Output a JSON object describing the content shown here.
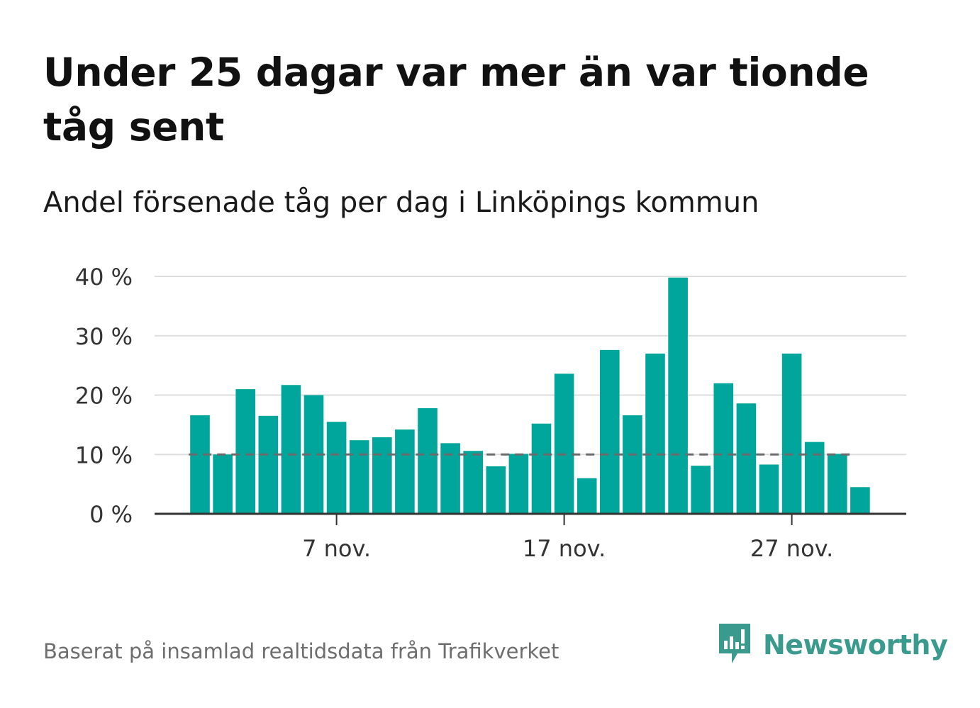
{
  "title": "Under 25 dagar var mer än var tionde tåg sent",
  "subtitle": "Andel försenade tåg per dag i Linköpings kommun",
  "source": "Baserat på insamlad realtidsdata från Trafikverket",
  "brand": {
    "name": "Newsworthy",
    "icon": "newsworthy-logo-icon"
  },
  "colors": {
    "bar": "#00a59b",
    "reference": "#6b6b6b",
    "grid": "#dddddd",
    "axis": "#333333",
    "brand": "#3a9a8e"
  },
  "chart_data": {
    "type": "bar",
    "x_start_day": 1,
    "x_unit": "nov.",
    "values": [
      16.6,
      10.0,
      21.0,
      16.5,
      21.7,
      20.0,
      15.5,
      12.4,
      12.9,
      14.2,
      17.8,
      11.9,
      10.6,
      8.0,
      10.1,
      15.2,
      23.6,
      6.0,
      27.6,
      16.6,
      27.0,
      39.8,
      8.1,
      22.0,
      18.6,
      8.3,
      27.0,
      12.1,
      10.1,
      4.5
    ],
    "reference_line": 10,
    "ylim": [
      0,
      40
    ],
    "yticks": [
      0,
      10,
      20,
      30,
      40
    ],
    "ytick_labels": [
      "0 %",
      "10 %",
      "20 %",
      "30 %",
      "40 %"
    ],
    "xtick_days": [
      7,
      17,
      27
    ],
    "xtick_labels": [
      "7 nov.",
      "17 nov.",
      "27 nov."
    ],
    "grid": true,
    "legend": "none"
  }
}
